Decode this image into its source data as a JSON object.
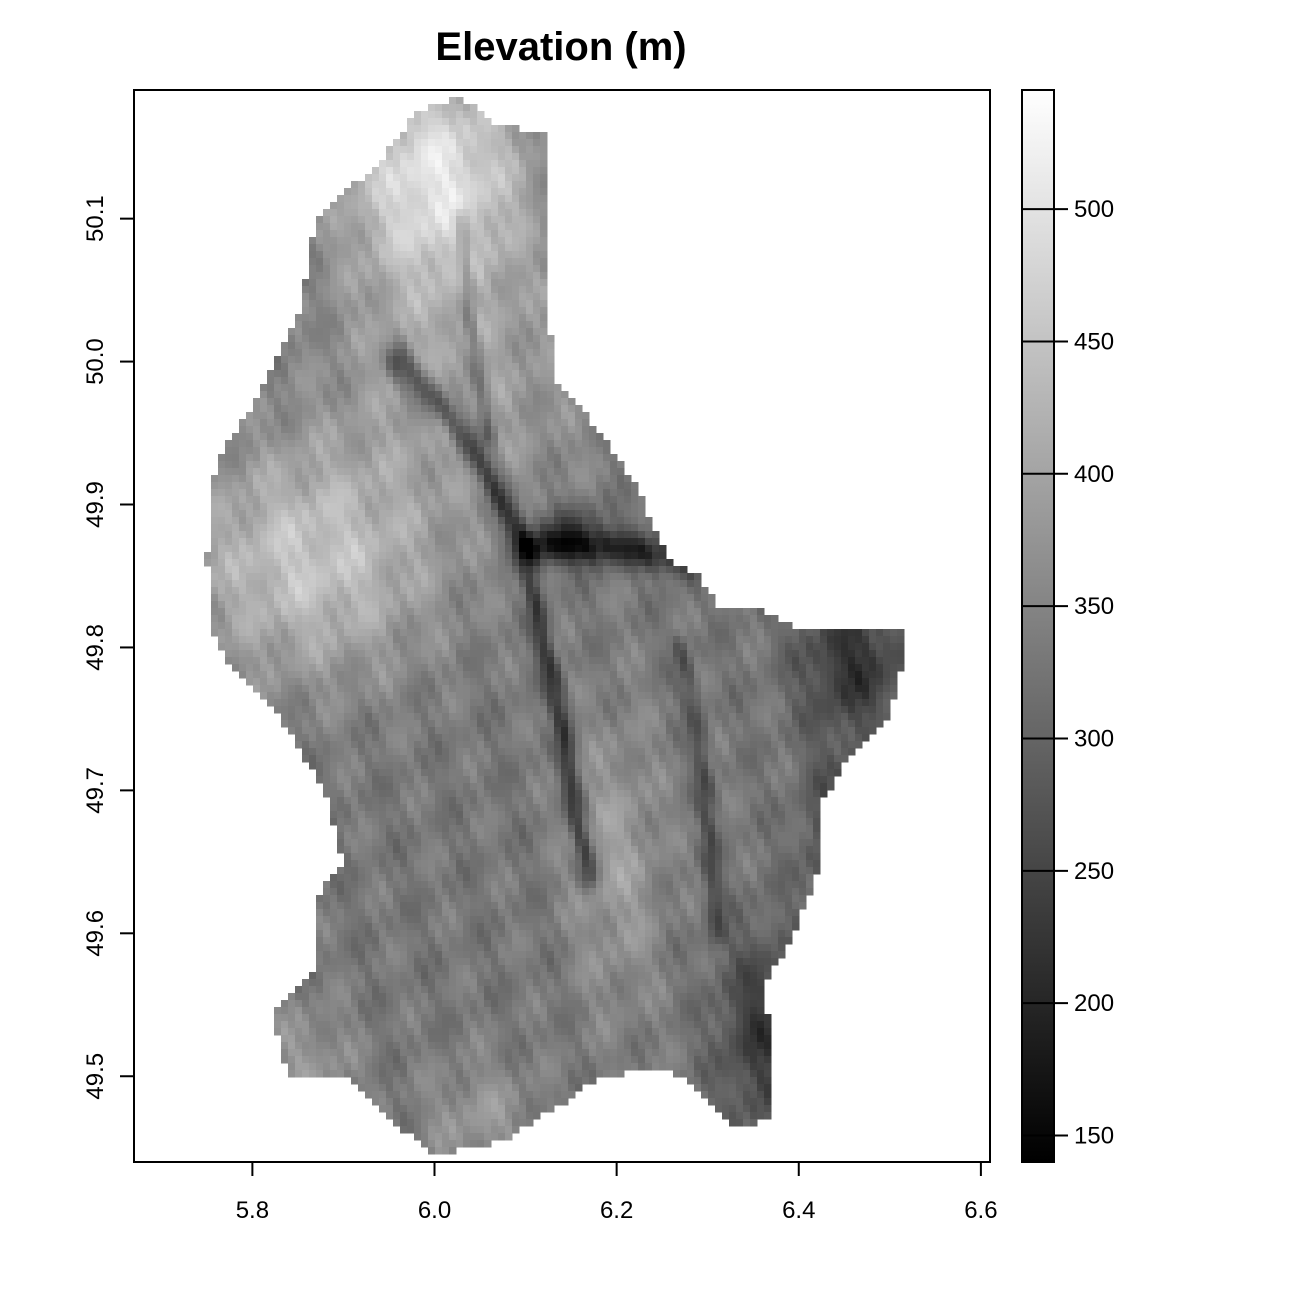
{
  "title": "Elevation (m)",
  "chart_data": {
    "type": "heatmap",
    "title": "Elevation (m)",
    "xlabel": "",
    "ylabel": "",
    "xlim": [
      5.67,
      6.61
    ],
    "ylim": [
      49.44,
      50.19
    ],
    "x_ticks": [
      5.8,
      6.0,
      6.2,
      6.4,
      6.6
    ],
    "x_tick_labels": [
      "5.8",
      "6.0",
      "6.2",
      "6.4",
      "6.6"
    ],
    "y_ticks": [
      49.5,
      49.6,
      49.7,
      49.8,
      49.9,
      50.0,
      50.1
    ],
    "y_tick_labels": [
      "49.5",
      "49.6",
      "49.7",
      "49.8",
      "49.9",
      "50.0",
      "50.1"
    ],
    "colorbar": {
      "range": [
        140,
        545
      ],
      "ticks": [
        150,
        200,
        250,
        300,
        350,
        400,
        450,
        500
      ],
      "tick_labels": [
        "150",
        "200",
        "250",
        "300",
        "350",
        "400",
        "450",
        "500"
      ],
      "low_color": "#000000",
      "high_color": "#ffffff"
    },
    "outline": [
      [
        6.03,
        50.185
      ],
      [
        6.07,
        50.165
      ],
      [
        6.12,
        50.16
      ],
      [
        6.12,
        50.09
      ],
      [
        6.13,
        49.99
      ],
      [
        6.17,
        49.96
      ],
      [
        6.22,
        49.915
      ],
      [
        6.25,
        49.87
      ],
      [
        6.26,
        49.86
      ],
      [
        6.29,
        49.85
      ],
      [
        6.31,
        49.83
      ],
      [
        6.36,
        49.825
      ],
      [
        6.39,
        49.815
      ],
      [
        6.46,
        49.815
      ],
      [
        6.52,
        49.81
      ],
      [
        6.5,
        49.75
      ],
      [
        6.45,
        49.72
      ],
      [
        6.42,
        49.685
      ],
      [
        6.42,
        49.64
      ],
      [
        6.39,
        49.595
      ],
      [
        6.36,
        49.56
      ],
      [
        6.37,
        49.53
      ],
      [
        6.37,
        49.47
      ],
      [
        6.33,
        49.465
      ],
      [
        6.28,
        49.495
      ],
      [
        6.25,
        49.505
      ],
      [
        6.18,
        49.5
      ],
      [
        6.14,
        49.48
      ],
      [
        6.11,
        49.47
      ],
      [
        6.08,
        49.455
      ],
      [
        6.04,
        49.45
      ],
      [
        6.0,
        49.445
      ],
      [
        5.97,
        49.46
      ],
      [
        5.9,
        49.5
      ],
      [
        5.84,
        49.5
      ],
      [
        5.82,
        49.545
      ],
      [
        5.87,
        49.575
      ],
      [
        5.87,
        49.625
      ],
      [
        5.9,
        49.65
      ],
      [
        5.88,
        49.7
      ],
      [
        5.85,
        49.73
      ],
      [
        5.82,
        49.76
      ],
      [
        5.76,
        49.8
      ],
      [
        5.75,
        49.86
      ],
      [
        5.76,
        49.93
      ],
      [
        5.8,
        49.97
      ],
      [
        5.85,
        50.03
      ],
      [
        5.87,
        50.1
      ],
      [
        5.94,
        50.14
      ],
      [
        5.98,
        50.175
      ]
    ],
    "elevation_surface": {
      "base": 330,
      "features": [
        {
          "type": "hill",
          "x": 6.0,
          "y": 50.13,
          "sx": 0.1,
          "sy": 0.08,
          "amp": 170
        },
        {
          "type": "hill",
          "x": 5.86,
          "y": 49.86,
          "sx": 0.14,
          "sy": 0.08,
          "amp": 120
        },
        {
          "type": "hill",
          "x": 6.03,
          "y": 49.99,
          "sx": 0.16,
          "sy": 0.1,
          "amp": 60
        },
        {
          "type": "hill",
          "x": 6.2,
          "y": 49.65,
          "sx": 0.05,
          "sy": 0.1,
          "amp": 60
        },
        {
          "type": "hill",
          "x": 6.05,
          "y": 49.47,
          "sx": 0.06,
          "sy": 0.04,
          "amp": 50
        },
        {
          "type": "hill",
          "x": 5.86,
          "y": 49.51,
          "sx": 0.05,
          "sy": 0.04,
          "amp": 50
        },
        {
          "type": "basin",
          "x": 6.46,
          "y": 49.79,
          "sx": 0.06,
          "sy": 0.05,
          "amp": 110
        },
        {
          "type": "basin",
          "x": 6.36,
          "y": 49.53,
          "sx": 0.05,
          "sy": 0.07,
          "amp": 100
        },
        {
          "type": "basin",
          "x": 6.44,
          "y": 49.67,
          "sx": 0.04,
          "sy": 0.06,
          "amp": 70
        },
        {
          "type": "basin",
          "x": 6.15,
          "y": 49.88,
          "sx": 0.05,
          "sy": 0.02,
          "amp": 90
        }
      ],
      "valleys": [
        {
          "path": [
            [
              5.96,
              50.0
            ],
            [
              6.02,
              49.96
            ],
            [
              6.06,
              49.92
            ],
            [
              6.1,
              49.87
            ],
            [
              6.14,
              49.87
            ],
            [
              6.2,
              49.87
            ],
            [
              6.28,
              49.86
            ]
          ],
          "depth": 120,
          "width": 0.012
        },
        {
          "path": [
            [
              6.1,
              49.87
            ],
            [
              6.12,
              49.8
            ],
            [
              6.14,
              49.75
            ],
            [
              6.15,
              49.7
            ],
            [
              6.17,
              49.64
            ]
          ],
          "depth": 100,
          "width": 0.01
        },
        {
          "path": [
            [
              6.03,
              50.1
            ],
            [
              6.04,
              50.02
            ],
            [
              6.06,
              49.95
            ]
          ],
          "depth": 70,
          "width": 0.008
        },
        {
          "path": [
            [
              6.27,
              49.8
            ],
            [
              6.29,
              49.74
            ],
            [
              6.3,
              49.68
            ],
            [
              6.31,
              49.6
            ]
          ],
          "depth": 60,
          "width": 0.01
        }
      ]
    }
  }
}
